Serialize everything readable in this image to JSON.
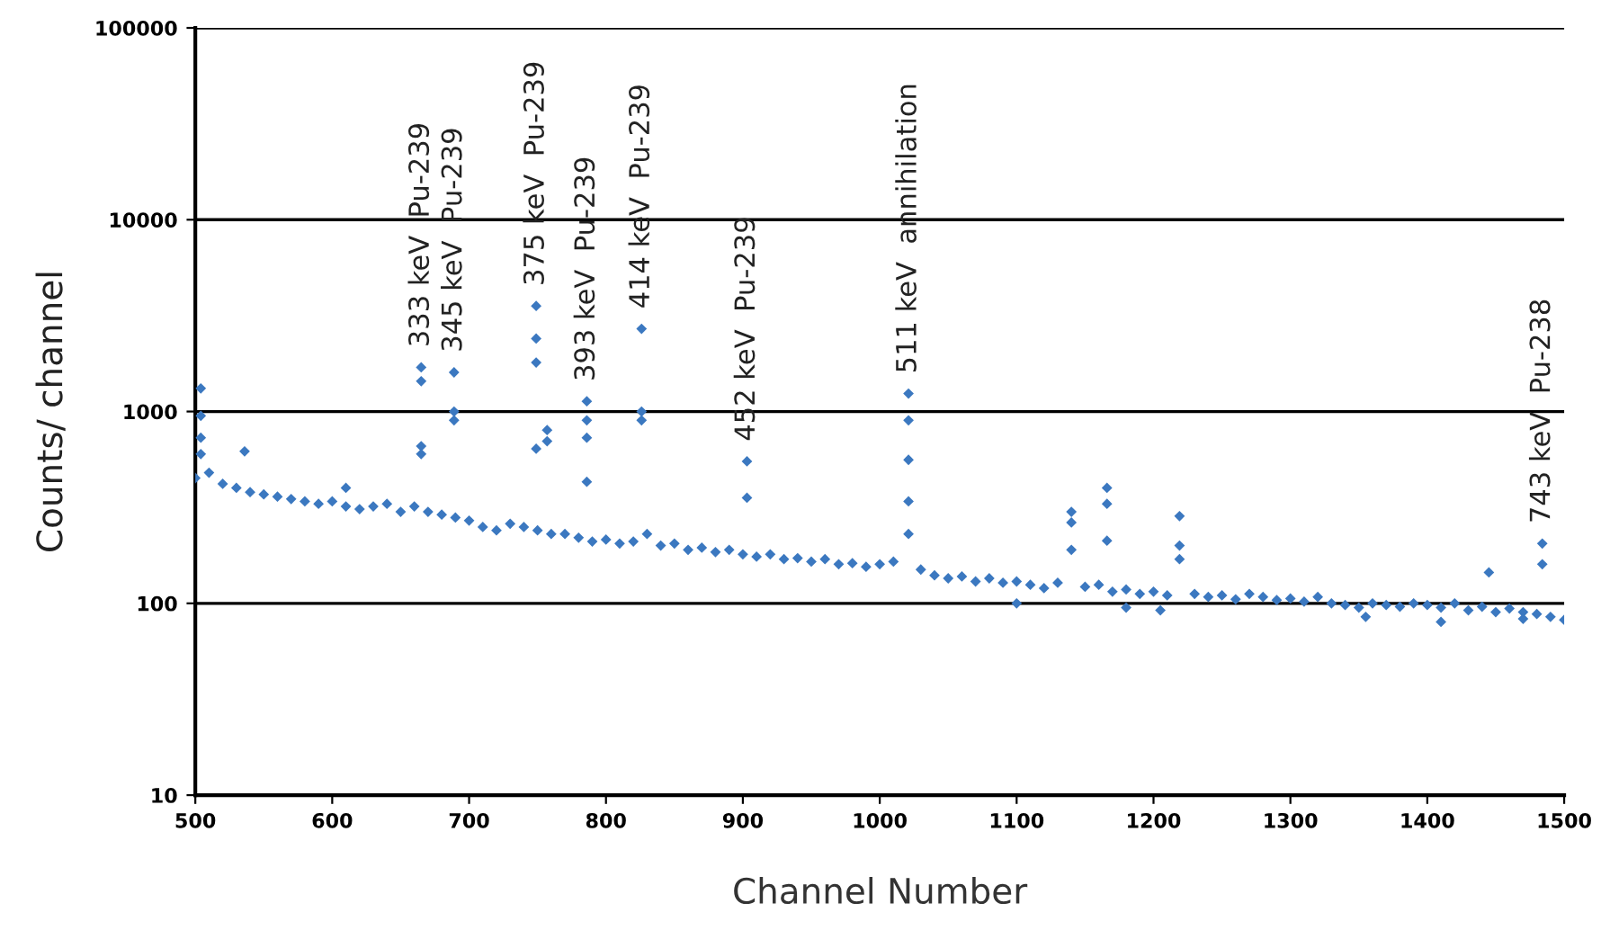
{
  "chart_data": {
    "type": "scatter",
    "xlabel": "Channel Number",
    "ylabel": "Counts/ channel",
    "log": "y",
    "grid": "y",
    "marker": "diamond",
    "xlim": [
      500,
      1500
    ],
    "xticks": [
      500,
      600,
      700,
      800,
      900,
      1000,
      1100,
      1200,
      1300,
      1400,
      1500
    ],
    "ylim": [
      10,
      100000
    ],
    "yticks": [
      10,
      100,
      1000,
      10000,
      100000
    ],
    "series": [
      {
        "color": "#3b78c0",
        "x": [
          500,
          504,
          504,
          504,
          504,
          510,
          520,
          530,
          536,
          540,
          550,
          560,
          570,
          580,
          590,
          600,
          610,
          610,
          620,
          630,
          640,
          650,
          660,
          665,
          665,
          665,
          665,
          670,
          680,
          689,
          689,
          689,
          690,
          700,
          710,
          720,
          730,
          740,
          749,
          749,
          749,
          749,
          750,
          757,
          757,
          760,
          770,
          780,
          786,
          786,
          786,
          786,
          790,
          800,
          810,
          820,
          826,
          826,
          826,
          830,
          840,
          850,
          860,
          870,
          880,
          890,
          900,
          903,
          903,
          910,
          920,
          930,
          940,
          950,
          960,
          970,
          980,
          990,
          1000,
          1010,
          1021,
          1021,
          1021,
          1021,
          1021,
          1030,
          1040,
          1050,
          1060,
          1070,
          1080,
          1090,
          1100,
          1100,
          1110,
          1120,
          1130,
          1140,
          1140,
          1140,
          1150,
          1160,
          1166,
          1166,
          1166,
          1170,
          1180,
          1180,
          1190,
          1200,
          1205,
          1210,
          1219,
          1219,
          1219,
          1230,
          1240,
          1250,
          1260,
          1270,
          1280,
          1290,
          1300,
          1310,
          1320,
          1330,
          1340,
          1350,
          1355,
          1360,
          1370,
          1380,
          1390,
          1400,
          1410,
          1410,
          1420,
          1430,
          1440,
          1445,
          1450,
          1460,
          1470,
          1470,
          1480,
          1484,
          1484,
          1490,
          1500
        ],
        "values": [
          450,
          1320,
          950,
          730,
          600,
          480,
          420,
          400,
          620,
          380,
          370,
          360,
          350,
          340,
          330,
          340,
          320,
          400,
          310,
          320,
          330,
          300,
          320,
          1700,
          1440,
          660,
          600,
          300,
          290,
          1600,
          1000,
          900,
          280,
          270,
          250,
          240,
          260,
          250,
          3550,
          2400,
          1800,
          640,
          240,
          800,
          700,
          230,
          230,
          220,
          1130,
          900,
          730,
          430,
          210,
          215,
          205,
          210,
          2700,
          1000,
          900,
          230,
          200,
          205,
          190,
          195,
          185,
          190,
          180,
          550,
          355,
          175,
          180,
          170,
          172,
          165,
          170,
          160,
          162,
          155,
          160,
          165,
          1240,
          900,
          560,
          340,
          230,
          150,
          140,
          135,
          138,
          130,
          135,
          128,
          130,
          100,
          125,
          120,
          128,
          300,
          264,
          190,
          122,
          125,
          400,
          330,
          212,
          115,
          118,
          95,
          112,
          115,
          92,
          110,
          285,
          200,
          170,
          112,
          108,
          110,
          105,
          112,
          108,
          104,
          106,
          102,
          108,
          100,
          98,
          95,
          85,
          100,
          98,
          96,
          100,
          98,
          95,
          80,
          100,
          92,
          96,
          145,
          90,
          94,
          90,
          83,
          88,
          205,
          160,
          85,
          82
        ]
      }
    ],
    "annotations": [
      {
        "text": "333 keV  Pu-239",
        "x": 665,
        "y": 1700
      },
      {
        "text": "345 keV  Pu-239",
        "x": 689,
        "y": 1600
      },
      {
        "text": "375 keV  Pu-239",
        "x": 749,
        "y": 3550
      },
      {
        "text": "393 keV  Pu-239",
        "x": 786,
        "y": 1130
      },
      {
        "text": "414 keV  Pu-239",
        "x": 826,
        "y": 2700
      },
      {
        "text": "452 keV  Pu-239",
        "x": 903,
        "y": 550
      },
      {
        "text": "511 keV  annihilation",
        "x": 1021,
        "y": 1240
      },
      {
        "text": "743 keV  Pu-238",
        "x": 1484,
        "y": 205
      }
    ]
  }
}
